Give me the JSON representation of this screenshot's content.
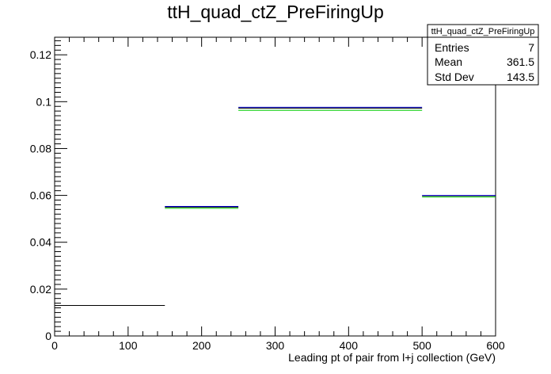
{
  "chart_data": {
    "type": "histogram",
    "title": "ttH_quad_ctZ_PreFiringUp",
    "xlabel": "Leading pt of pair from l+j collection (GeV)",
    "ylabel": "",
    "xlim": [
      0,
      600
    ],
    "ylim": [
      0,
      0.1275
    ],
    "x_ticks": [
      0,
      100,
      200,
      300,
      400,
      500,
      600
    ],
    "y_ticks": [
      0,
      0.02,
      0.04,
      0.06,
      0.08,
      0.1,
      0.12
    ],
    "x_tick_labels": [
      "0",
      "100",
      "200",
      "300",
      "400",
      "500",
      "600"
    ],
    "y_tick_labels": [
      "0",
      "0.02",
      "0.04",
      "0.06",
      "0.08",
      "0.1",
      "0.12"
    ],
    "grid": false,
    "legend": "none",
    "series": [
      {
        "color": "#000000",
        "bins": [
          {
            "x0": 0,
            "x1": 150,
            "y": 0.013
          },
          {
            "x0": 150,
            "x1": 250,
            "y": 0.055
          },
          {
            "x0": 250,
            "x1": 500,
            "y": 0.0972
          },
          {
            "x0": 500,
            "x1": 600,
            "y": 0.0598
          }
        ]
      },
      {
        "color": "#00cc00",
        "bins": [
          {
            "x0": 150,
            "x1": 250,
            "y": 0.0545
          },
          {
            "x0": 250,
            "x1": 500,
            "y": 0.0963
          },
          {
            "x0": 500,
            "x1": 600,
            "y": 0.0593
          }
        ]
      },
      {
        "color": "#0000cc",
        "bins": [
          {
            "x0": 150,
            "x1": 250,
            "y": 0.0553
          },
          {
            "x0": 250,
            "x1": 500,
            "y": 0.0976
          },
          {
            "x0": 500,
            "x1": 600,
            "y": 0.06
          }
        ]
      }
    ],
    "stats_box": {
      "title": "ttH_quad_ctZ_PreFiringUp",
      "rows": [
        {
          "label": "Entries",
          "value": "7"
        },
        {
          "label": "Mean",
          "value": "361.5"
        },
        {
          "label": "Std Dev",
          "value": "143.5"
        }
      ]
    }
  }
}
